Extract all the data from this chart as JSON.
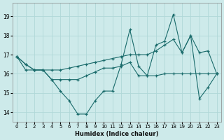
{
  "xlabel": "Humidex (Indice chaleur)",
  "background_color": "#cdeaea",
  "grid_color": "#b0d8d8",
  "line_color": "#1a6b6b",
  "x_values": [
    0,
    1,
    2,
    3,
    4,
    5,
    6,
    7,
    8,
    9,
    10,
    11,
    12,
    13,
    14,
    15,
    16,
    17,
    18,
    19,
    20,
    21,
    22,
    23
  ],
  "series1": [
    16.9,
    16.5,
    16.2,
    16.2,
    15.7,
    15.1,
    14.6,
    13.9,
    13.9,
    14.6,
    15.1,
    15.1,
    16.5,
    18.3,
    16.4,
    15.9,
    17.5,
    17.7,
    19.1,
    17.1,
    18.0,
    14.7,
    15.3,
    16.0
  ],
  "series2": [
    16.9,
    16.2,
    16.2,
    16.2,
    15.7,
    15.7,
    15.7,
    15.7,
    15.9,
    16.1,
    16.3,
    16.3,
    16.4,
    16.6,
    15.9,
    15.9,
    15.9,
    16.0,
    16.0,
    16.0,
    16.0,
    16.0,
    16.0,
    16.0
  ],
  "series3": [
    16.9,
    16.5,
    16.2,
    16.2,
    16.2,
    16.2,
    16.3,
    16.4,
    16.5,
    16.6,
    16.7,
    16.8,
    16.9,
    17.0,
    17.0,
    17.0,
    17.2,
    17.5,
    17.8,
    17.1,
    18.0,
    17.1,
    17.2,
    16.0
  ],
  "ylim": [
    13.5,
    19.7
  ],
  "yticks": [
    14,
    15,
    16,
    17,
    18,
    19
  ],
  "xticks": [
    0,
    1,
    2,
    3,
    4,
    5,
    6,
    7,
    8,
    9,
    10,
    11,
    12,
    13,
    14,
    15,
    16,
    17,
    18,
    19,
    20,
    21,
    22,
    23
  ]
}
